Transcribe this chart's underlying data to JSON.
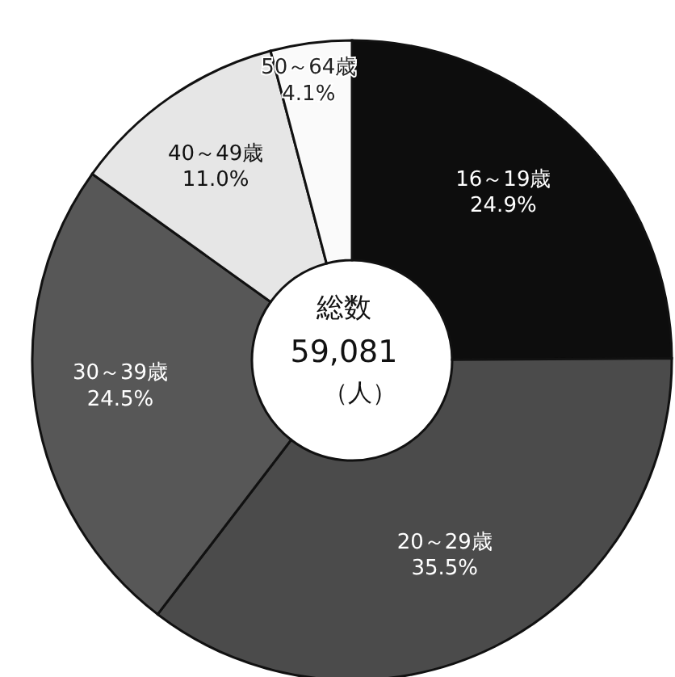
{
  "chart_data": {
    "type": "donut",
    "title": "総数",
    "subtitle": "59,081",
    "annotations": [
      "（人）"
    ],
    "categories": [
      "16～19歳",
      "20～29歳",
      "30～39歳",
      "40～49歳",
      "50～64歳"
    ],
    "values": [
      24.9,
      35.5,
      24.5,
      11.0,
      4.1
    ],
    "value_labels": [
      "24.9%",
      "35.5%",
      "24.5%",
      "11.0%",
      "4.1%"
    ],
    "colors": [
      "#0d0d0d",
      "#4b4b4b",
      "#575757",
      "#e6e6e6",
      "#fafafa"
    ]
  }
}
